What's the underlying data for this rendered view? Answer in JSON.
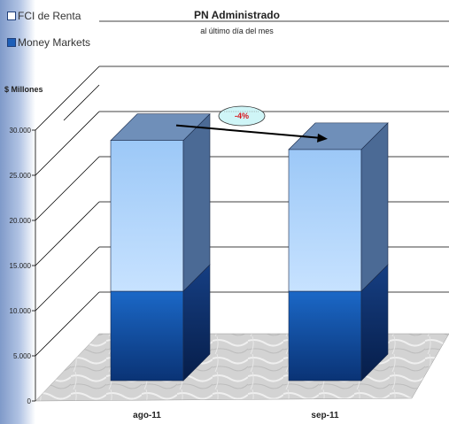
{
  "legend": [
    {
      "label": "FCI de Renta",
      "color": "#9fc8f5"
    },
    {
      "label": "Money Markets",
      "color": "#1d5fb8"
    }
  ],
  "chart_data": {
    "type": "bar",
    "stacked": true,
    "title": "PN Administrado",
    "subtitle": "al último día del mes",
    "ylabel": "$ Millones",
    "categories": [
      "ago-11",
      "sep-11"
    ],
    "series": [
      {
        "name": "Money Markets",
        "values": [
          9900,
          9900
        ],
        "color": "#1d5fb8"
      },
      {
        "name": "FCI de Renta",
        "values": [
          16700,
          15700
        ],
        "color": "#9fc8f5"
      }
    ],
    "ylim": [
      0,
      30000
    ],
    "yticks": [
      0,
      5000,
      10000,
      15000,
      20000,
      25000,
      30000
    ],
    "ytick_labels": [
      "0",
      "5.000",
      "10.000",
      "15.000",
      "20.000",
      "25.000",
      "30.000"
    ],
    "grid": true,
    "annotation": {
      "text": "-4%"
    }
  }
}
